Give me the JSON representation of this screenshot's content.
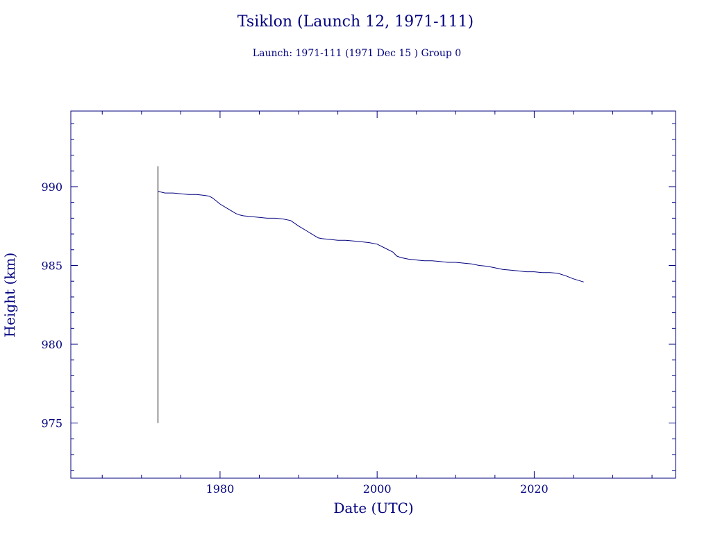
{
  "chart_data": {
    "type": "line",
    "title": "Tsiklon (Launch 12, 1971-111)",
    "subtitle": "Launch: 1971-111  (1971 Dec 15 )  Group 0",
    "xlabel": "Date (UTC)",
    "ylabel": "Height (km)",
    "xlim": [
      1961,
      2038
    ],
    "ylim": [
      971.5,
      994.8
    ],
    "x_ticks": [
      1980,
      2000,
      2020
    ],
    "y_ticks": [
      975,
      980,
      985,
      990
    ],
    "grid": false,
    "legend": "none",
    "colors": {
      "axis": "#00007f",
      "series": "#00007f",
      "spike": "#000000"
    },
    "series": [
      {
        "x": [
          1972.1,
          1973.0,
          1974.0,
          1975.0,
          1976.0,
          1977.0,
          1978.0,
          1978.6,
          1979.0,
          1979.5,
          1980.0,
          1981.0,
          1982.0,
          1982.5,
          1983.0,
          1984.0,
          1985.0,
          1986.0,
          1987.0,
          1988.0,
          1989.0,
          1990.0,
          1991.0,
          1992.0,
          1992.5,
          1993.0,
          1994.0,
          1995.0,
          1996.0,
          1997.0,
          1998.0,
          1999.0,
          2000.0,
          2001.0,
          2002.0,
          2002.5,
          2003.0,
          2004.0,
          2005.0,
          2006.0,
          2007.0,
          2008.0,
          2009.0,
          2010.0,
          2011.0,
          2012.0,
          2013.0,
          2014.0,
          2015.0,
          2016.0,
          2017.0,
          2018.0,
          2019.0,
          2020.0,
          2021.0,
          2022.0,
          2023.0,
          2024.0,
          2025.0,
          2026.3
        ],
        "y": [
          989.7,
          989.6,
          989.6,
          989.55,
          989.5,
          989.5,
          989.45,
          989.4,
          989.3,
          989.1,
          988.9,
          988.6,
          988.3,
          988.2,
          988.15,
          988.1,
          988.05,
          988.0,
          988.0,
          987.95,
          987.85,
          987.5,
          987.2,
          986.9,
          986.75,
          986.7,
          986.65,
          986.6,
          986.6,
          986.55,
          986.5,
          986.45,
          986.35,
          986.1,
          985.85,
          985.6,
          985.5,
          985.4,
          985.35,
          985.3,
          985.3,
          985.25,
          985.2,
          985.2,
          985.15,
          985.1,
          985.0,
          984.95,
          984.85,
          984.75,
          984.7,
          984.65,
          984.6,
          984.6,
          984.55,
          984.55,
          984.5,
          984.35,
          984.15,
          983.95
        ]
      }
    ],
    "spike": {
      "x": 1972.1,
      "y_min": 975.0,
      "y_max": 991.3
    }
  }
}
